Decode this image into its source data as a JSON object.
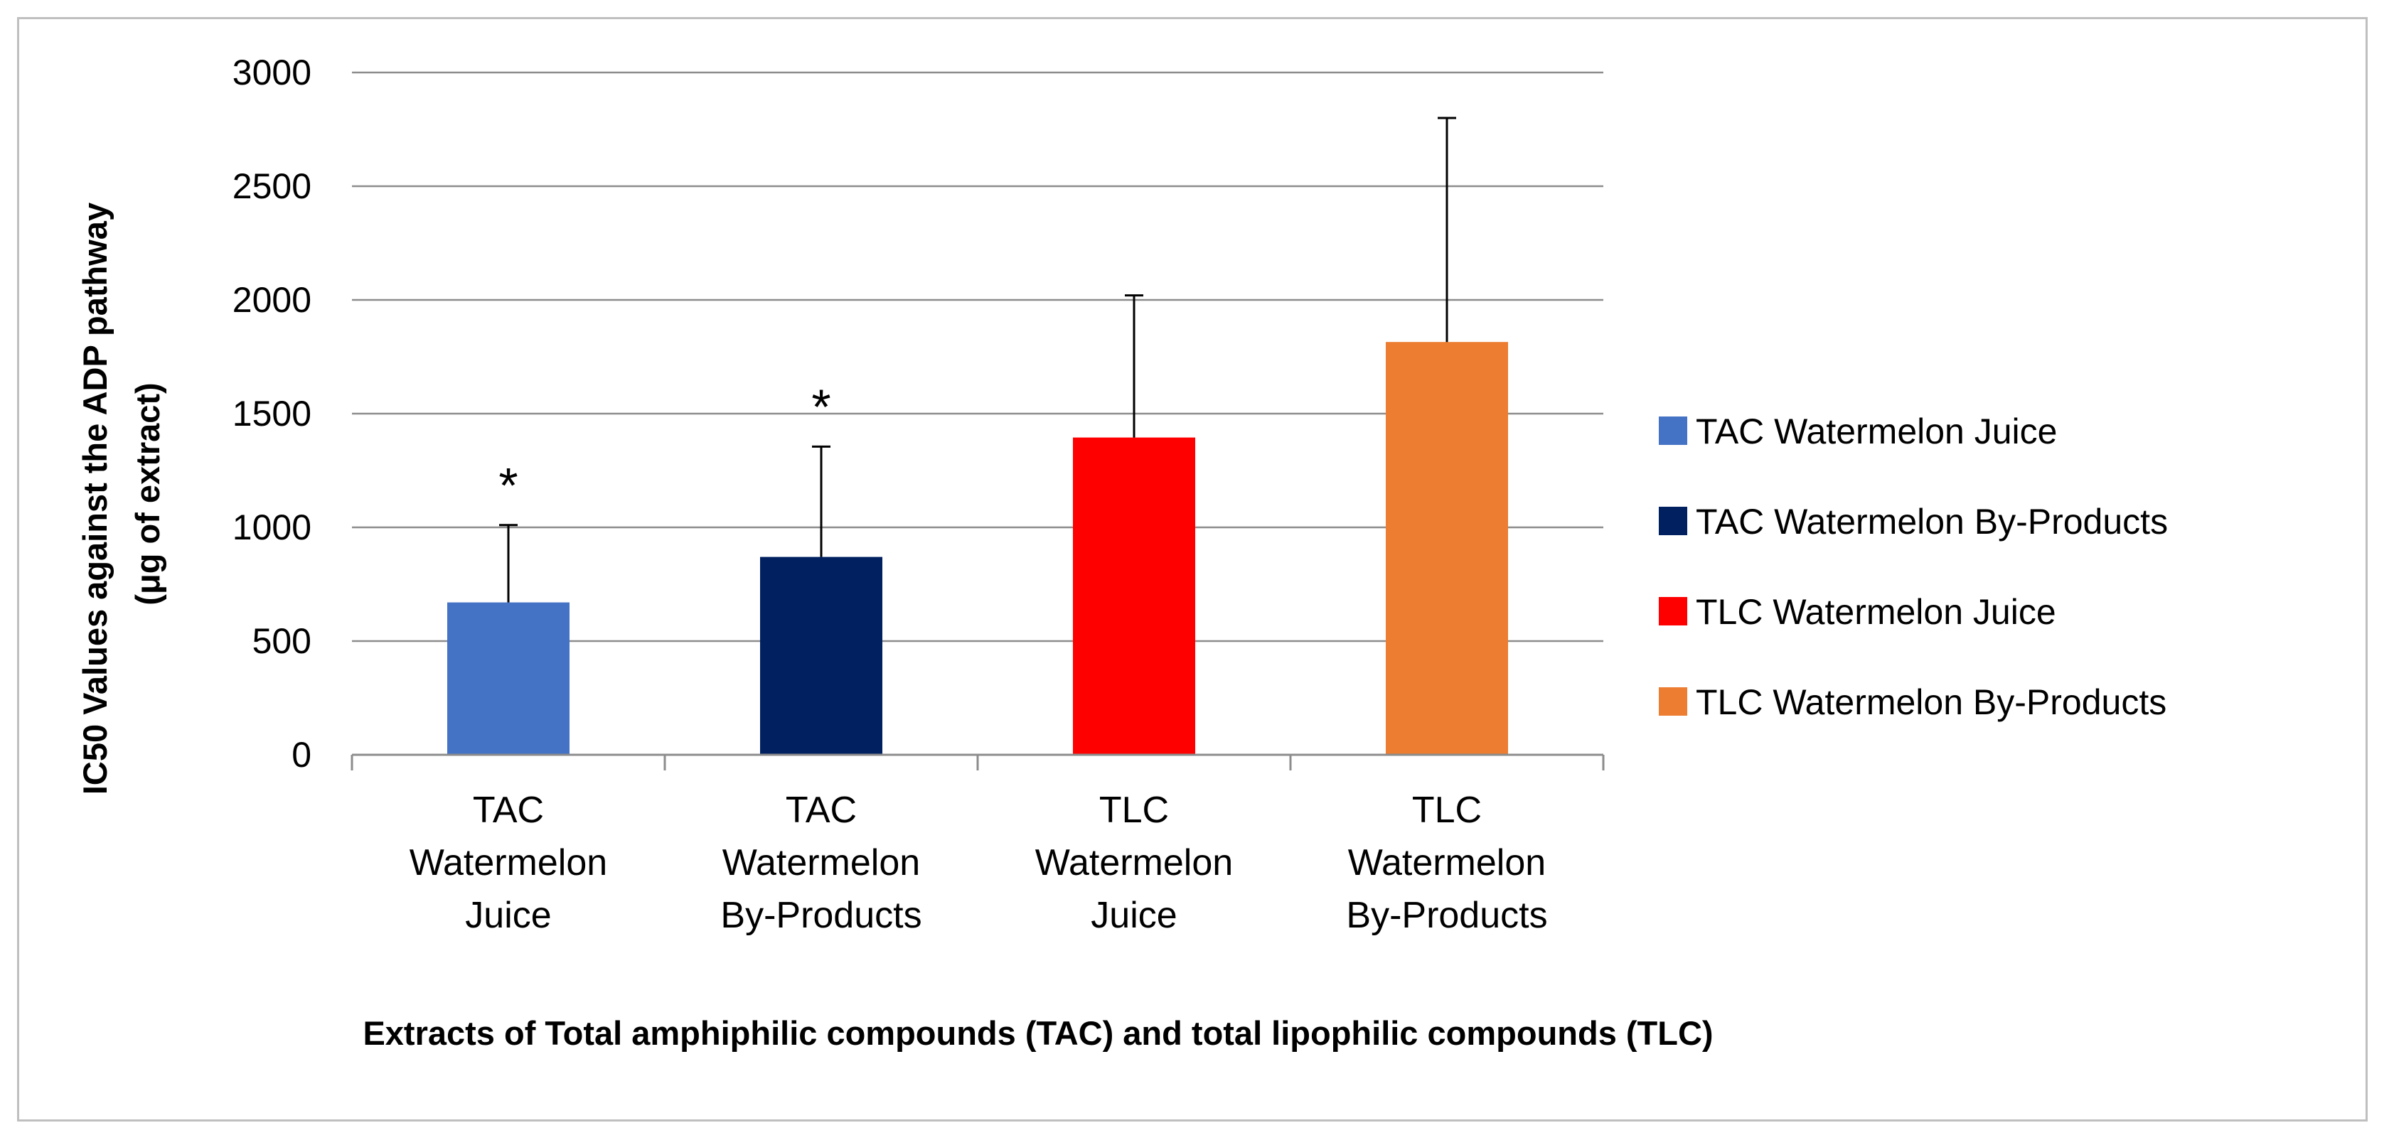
{
  "chart_data": {
    "type": "bar",
    "title": "",
    "categories": [
      [
        "TAC",
        "Watermelon",
        "Juice"
      ],
      [
        "TAC",
        "Watermelon",
        "By-Products"
      ],
      [
        "TLC",
        "Watermelon",
        "Juice"
      ],
      [
        "TLC",
        "Watermelon",
        "By-Products"
      ]
    ],
    "series": [
      {
        "name": "TAC Watermelon Juice",
        "values": [
          670,
          null,
          null,
          null
        ],
        "error_plus": [
          340,
          null,
          null,
          null
        ],
        "color": "#4472c4"
      },
      {
        "name": "TAC Watermelon By-Products",
        "values": [
          null,
          870,
          null,
          null
        ],
        "error_plus": [
          null,
          485,
          null,
          null
        ],
        "color": "#002060"
      },
      {
        "name": "TLC Watermelon Juice",
        "values": [
          null,
          null,
          1395,
          null
        ],
        "error_plus": [
          null,
          null,
          625,
          null
        ],
        "color": "#ff0000"
      },
      {
        "name": "TLC Watermelon By-Products",
        "values": [
          null,
          null,
          null,
          1815
        ],
        "error_plus": [
          null,
          null,
          null,
          985
        ],
        "color": "#ed7d31"
      }
    ],
    "annotations": [
      "*",
      "*",
      "",
      ""
    ],
    "ylim": [
      0,
      3000
    ],
    "yticks": [
      "0",
      "500",
      "1000",
      "1500",
      "2000",
      "2500",
      "3000"
    ],
    "ytick_values": [
      0,
      500,
      1000,
      1500,
      2000,
      2500,
      3000
    ],
    "ylabel": [
      "IC50 Values against the ADP pathway",
      "(μg of extract)"
    ],
    "xlabel": "Extracts of Total amphiphilic compounds (TAC) and total lipophilic compounds (TLC)",
    "grid": true,
    "legend_position": "right",
    "legend": [
      {
        "label": "TAC Watermelon Juice",
        "color": "#4472c4"
      },
      {
        "label": "TAC Watermelon By-Products",
        "color": "#002060"
      },
      {
        "label": "TLC Watermelon Juice",
        "color": "#ff0000"
      },
      {
        "label": "TLC Watermelon By-Products",
        "color": "#ed7d31"
      }
    ]
  }
}
